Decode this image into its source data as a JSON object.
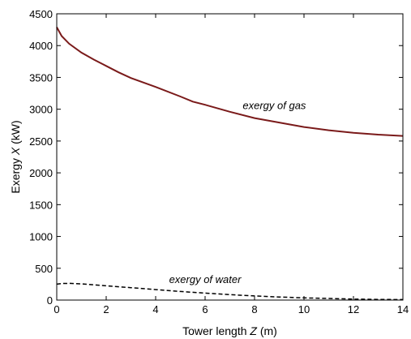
{
  "chart_data": {
    "type": "line",
    "xlabel_pre": "Tower length ",
    "xlabel_var": "Z",
    "xlabel_post": " (m)",
    "ylabel_pre": "Exergy ",
    "ylabel_var": "X",
    "ylabel_post": " (kW)",
    "xlim": [
      0,
      14
    ],
    "ylim": [
      0,
      4500
    ],
    "xticks": [
      "0",
      "2",
      "4",
      "6",
      "8",
      "10",
      "12",
      "14"
    ],
    "yticks": [
      "0",
      "500",
      "1000",
      "1500",
      "2000",
      "2500",
      "3000",
      "3500",
      "4000",
      "4500"
    ],
    "grid": false,
    "series": [
      {
        "name": "exergy of gas",
        "color": "#7a1a1a",
        "style": "solid",
        "x": [
          0,
          0.2,
          0.5,
          1,
          1.5,
          2,
          2.5,
          3,
          4,
          5,
          5.5,
          6,
          7,
          8,
          9,
          10,
          11,
          12,
          13,
          14
        ],
        "y": [
          4290,
          4150,
          4030,
          3890,
          3780,
          3680,
          3580,
          3490,
          3350,
          3200,
          3120,
          3070,
          2960,
          2860,
          2790,
          2720,
          2670,
          2630,
          2600,
          2580
        ]
      },
      {
        "name": "exergy of water",
        "color": "#000000",
        "style": "dashed",
        "x": [
          0,
          0.2,
          0.5,
          1,
          1.5,
          2,
          3,
          4,
          5,
          6,
          7,
          8,
          9,
          10,
          11,
          12,
          13,
          14
        ],
        "y": [
          250,
          260,
          262,
          255,
          240,
          225,
          195,
          165,
          135,
          110,
          85,
          65,
          48,
          35,
          25,
          15,
          10,
          8
        ]
      }
    ],
    "annotations": [
      {
        "text": "exergy of gas",
        "x": 8.8,
        "y": 3000
      },
      {
        "text": "exergy of water",
        "x": 6.0,
        "y": 270
      }
    ]
  }
}
